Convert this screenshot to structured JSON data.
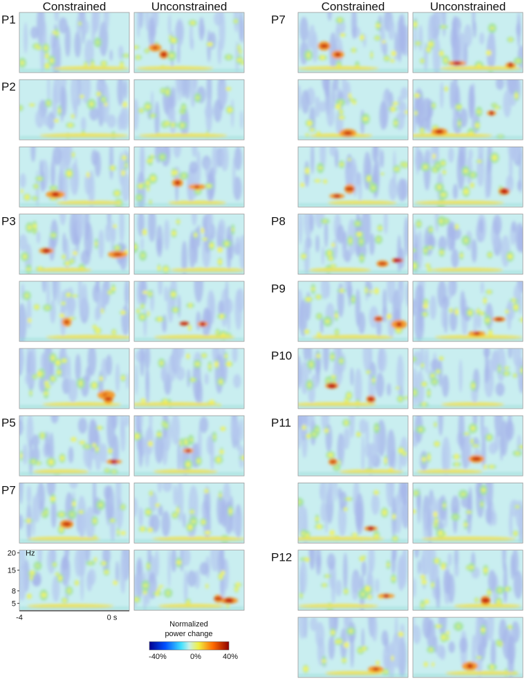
{
  "left": {
    "headers": [
      "Constrained",
      "Unconstrained"
    ],
    "rows": [
      "P1",
      "P2",
      null,
      "P3",
      null,
      null,
      "P5",
      "P7",
      null
    ]
  },
  "right": {
    "headers": [
      "Constrained",
      "Unconstrained"
    ],
    "rows": [
      "P7",
      null,
      null,
      "P8",
      "P9",
      "P10",
      "P11",
      null,
      "P12",
      null
    ]
  },
  "axes": {
    "y_ticks": [
      "20",
      "15",
      "8",
      "5"
    ],
    "y_unit": "Hz",
    "x_ticks": [
      "-4",
      "0 s"
    ]
  },
  "colorbar": {
    "title_lines": [
      "Normalized",
      "power change"
    ],
    "ticks": [
      "-40%",
      "0%",
      "40%"
    ]
  }
}
